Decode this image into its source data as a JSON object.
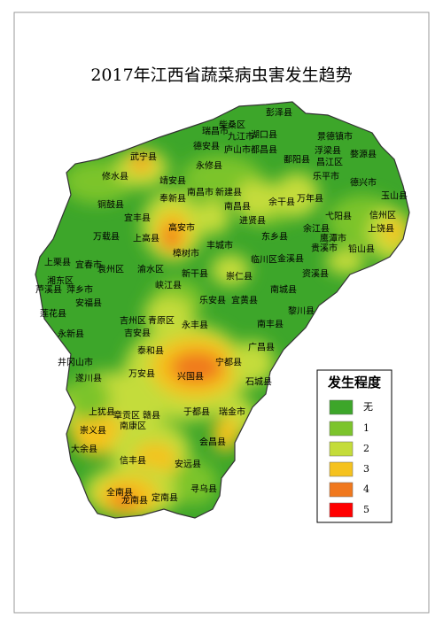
{
  "title": "2017年江西省蔬菜病虫害发生趋势",
  "map": {
    "labels": [
      "彭泽县",
      "柴桑区",
      "瑞昌市",
      "九江市",
      "湖口县",
      "德安县",
      "庐山市",
      "都昌县",
      "景德镇市",
      "浮梁县",
      "婺源县",
      "鄱阳县",
      "昌江区",
      "武宁县",
      "永修县",
      "修水县",
      "靖安县",
      "乐平市",
      "德兴市",
      "奉新县",
      "南昌市",
      "新建县",
      "玉山县",
      "余干县",
      "万年县",
      "铜鼓县",
      "宜丰县",
      "南昌县",
      "进贤县",
      "弋阳县",
      "信州区",
      "上饶县",
      "高安市",
      "万载县",
      "上高县",
      "东乡县",
      "余江县",
      "鹰潭市",
      "贵溪市",
      "铅山县",
      "丰城市",
      "樟树市",
      "宜春市",
      "上栗县",
      "袁州区",
      "渝水区",
      "临川区",
      "金溪县",
      "资溪县",
      "新干县",
      "崇仁县",
      "湘东区",
      "芦溪县",
      "萍乡市",
      "峡江县",
      "南城县",
      "安福县",
      "乐安县",
      "宜黄县",
      "黎川县",
      "莲花县",
      "吉州区",
      "青原区",
      "吉安县",
      "永丰县",
      "南丰县",
      "永新县",
      "广昌县",
      "泰和县",
      "井冈山市",
      "遂川县",
      "万安县",
      "宁都县",
      "兴国县",
      "石城县",
      "上犹县",
      "章贡区",
      "赣县",
      "南康区",
      "于都县",
      "瑞金市",
      "崇义县",
      "大余县",
      "会昌县",
      "信丰县",
      "安远县",
      "寻乌县",
      "全南县",
      "龙南县",
      "定南县"
    ]
  },
  "legend": {
    "title": "发生程度",
    "items": [
      {
        "label": "无",
        "color": "#3da62a"
      },
      {
        "label": "1",
        "color": "#7cc42c"
      },
      {
        "label": "2",
        "color": "#c4dc3a"
      },
      {
        "label": "3",
        "color": "#f5c21e"
      },
      {
        "label": "4",
        "color": "#f0781e"
      },
      {
        "label": "5",
        "color": "#ff0000"
      }
    ]
  }
}
